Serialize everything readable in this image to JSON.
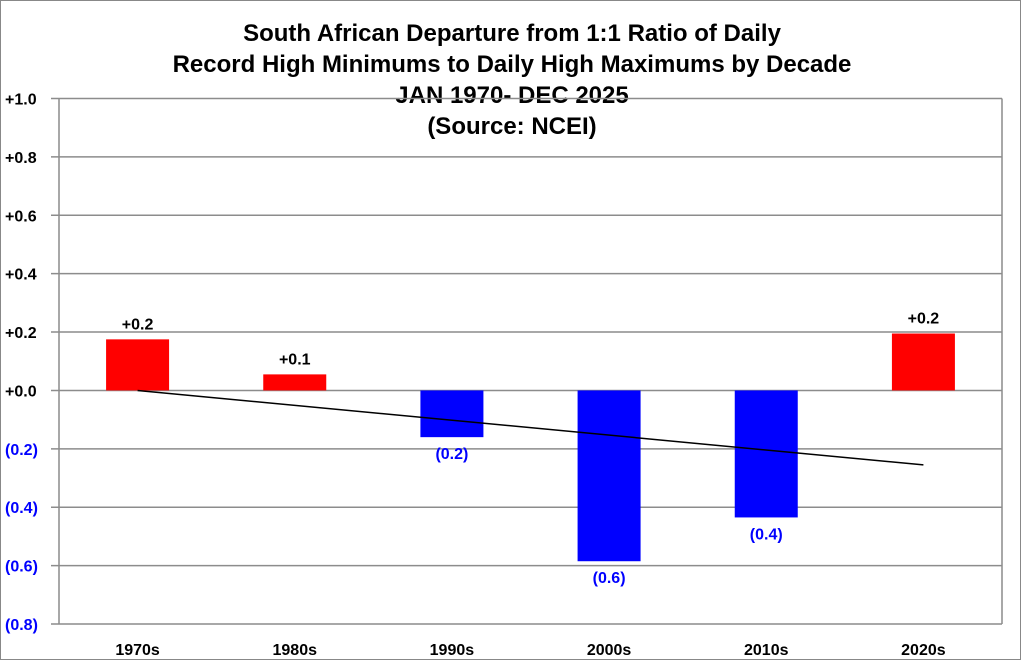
{
  "chart_data": {
    "type": "bar",
    "title_lines": [
      "South African Departure from 1:1 Ratio of Daily",
      "Record High Minimums to Daily High Maximums by Decade",
      "JAN 1970- DEC 2025",
      "(Source: NCEI)"
    ],
    "categories": [
      "1970s",
      "1980s",
      "1990s",
      "2000s",
      "2010s",
      "2020s"
    ],
    "values": [
      0.175,
      0.055,
      -0.16,
      -0.585,
      -0.435,
      0.195
    ],
    "data_labels": [
      "+0.2",
      "+0.1",
      "(0.2)",
      "(0.6)",
      "(0.4)",
      "+0.2"
    ],
    "ylim": [
      -0.8,
      1.0
    ],
    "yticks": [
      1.0,
      0.8,
      0.6,
      0.4,
      0.2,
      0.0,
      -0.2,
      -0.4,
      -0.6,
      -0.8
    ],
    "ytick_labels": [
      "+1.0",
      "+0.8",
      "+0.6",
      "+0.4",
      "+0.2",
      "+0.0",
      "(0.2)",
      "(0.4)",
      "(0.6)",
      "(0.8)"
    ],
    "trendline": {
      "start": 0.0,
      "end": -0.255
    },
    "grid": true,
    "colors": {
      "positive": "#ff0000",
      "negative": "#0000ff",
      "negative_label": "#0000ff",
      "trend": "#000000",
      "grid": "#8c8c8c"
    }
  }
}
